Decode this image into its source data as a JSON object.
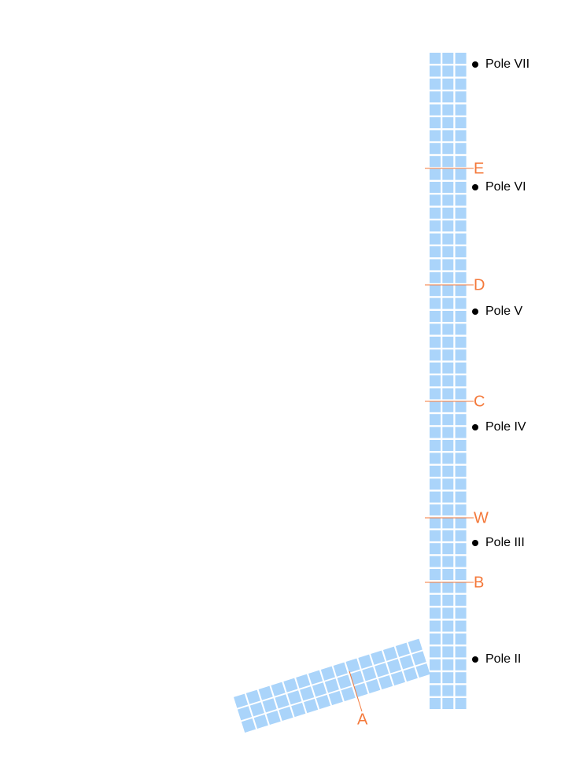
{
  "poles": [
    "Pole VII",
    "Pole VI",
    "Pole V",
    "Pole IV",
    "Pole III",
    "Pole II"
  ],
  "sections": [
    "E",
    "D",
    "C",
    "W",
    "B",
    "A"
  ]
}
